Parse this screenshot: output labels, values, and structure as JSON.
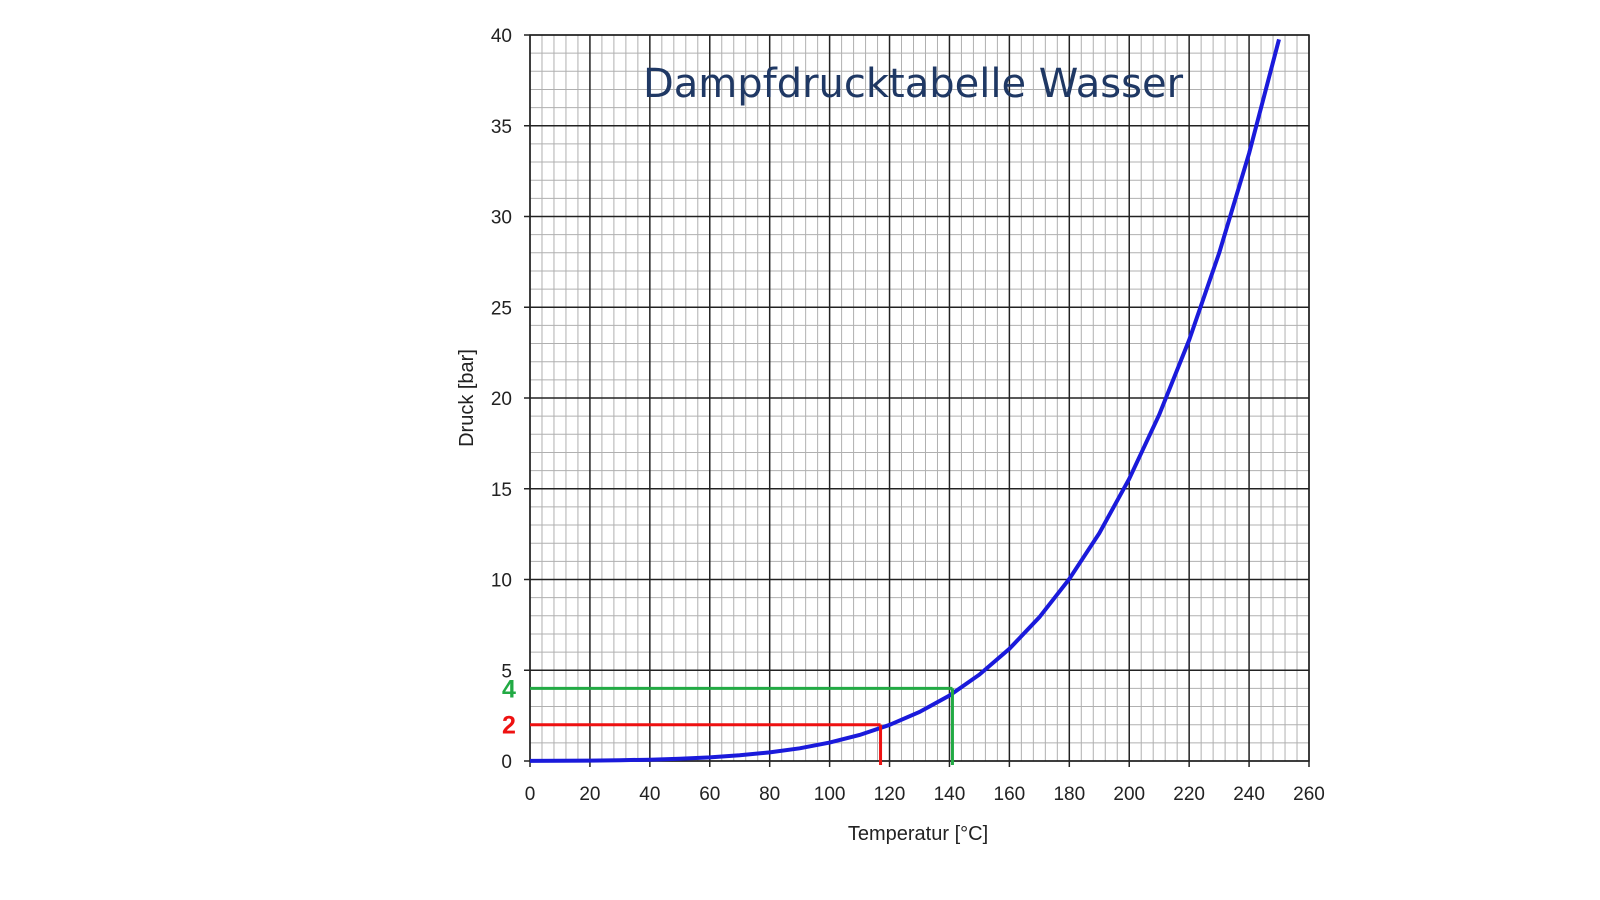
{
  "chart_data": {
    "type": "line",
    "title": "Dampfdrucktabelle Wasser",
    "xlabel": "Temperatur [°C]",
    "ylabel": "Druck [bar]",
    "xlim": [
      0,
      260
    ],
    "ylim": [
      0,
      40
    ],
    "x_ticks": [
      "0",
      "20",
      "40",
      "60",
      "80",
      "100",
      "120",
      "140",
      "160",
      "180",
      "200",
      "220",
      "240",
      "260"
    ],
    "y_ticks": [
      "0",
      "5",
      "10",
      "15",
      "20",
      "25",
      "30",
      "35",
      "40"
    ],
    "grid": true,
    "colors": {
      "curve": "#1a1adb",
      "title": "#1f3864",
      "marker_low": "#ee1111",
      "marker_high": "#22aa44",
      "grid_major": "#222222",
      "grid_minor": "#b0b0b0"
    },
    "series": [
      {
        "x": [
          0,
          10,
          20,
          30,
          40,
          50,
          60,
          70,
          80,
          90,
          100,
          110,
          120,
          130,
          140,
          150,
          160,
          170,
          180,
          190,
          200,
          210,
          220,
          230,
          240,
          250
        ],
        "y": [
          0.006,
          0.012,
          0.023,
          0.042,
          0.074,
          0.123,
          0.199,
          0.312,
          0.474,
          0.701,
          1.013,
          1.43,
          1.99,
          2.7,
          3.61,
          4.76,
          6.18,
          7.92,
          10.03,
          12.55,
          15.55,
          19.08,
          23.2,
          27.98,
          33.48,
          39.76
        ]
      }
    ],
    "markers": [
      {
        "label": "2",
        "pressure": 2,
        "temperature": 117
      },
      {
        "label": "4",
        "pressure": 4,
        "temperature": 141
      }
    ]
  }
}
